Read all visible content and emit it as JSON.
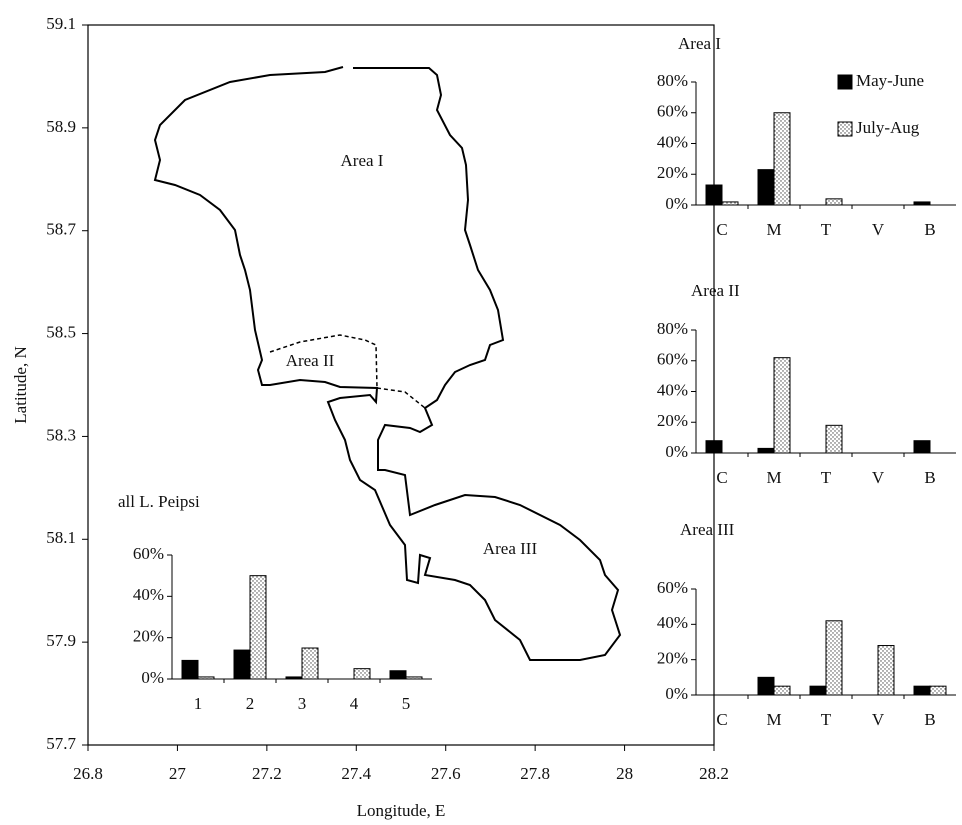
{
  "chart_data": [
    {
      "type": "map",
      "xlabel": "Longitude, E",
      "ylabel": "Latitude, N",
      "xlim": [
        26.8,
        28.2
      ],
      "ylim": [
        57.7,
        59.1
      ],
      "xticks": [
        26.8,
        27,
        27.2,
        27.4,
        27.6,
        27.8,
        28,
        28.2
      ],
      "yticks": [
        57.7,
        57.9,
        58.1,
        58.3,
        58.5,
        58.7,
        58.9,
        59.1
      ],
      "annotations": [
        "Area I",
        "Area II",
        "Area III"
      ]
    },
    {
      "type": "bar",
      "title": "all L. Peipsi",
      "categories": [
        "1",
        "2",
        "3",
        "4",
        "5"
      ],
      "series": [
        {
          "color": "#000000",
          "values": [
            9,
            14,
            1,
            0,
            4
          ]
        },
        {
          "color": "#ffffff",
          "pattern": "dotted",
          "values": [
            1,
            50,
            15,
            5,
            1
          ]
        }
      ],
      "ylim": [
        0,
        60
      ],
      "yticks": [
        {
          "value": 0,
          "label": "0%"
        },
        {
          "value": 20,
          "label": "20%"
        },
        {
          "value": 40,
          "label": "40%"
        },
        {
          "value": 60,
          "label": "60%"
        }
      ]
    },
    {
      "type": "bar",
      "title": "Area I",
      "categories": [
        "C",
        "M",
        "T",
        "V",
        "B"
      ],
      "legend": "top-right",
      "series": [
        {
          "name": "May-June",
          "color": "#000000",
          "values": [
            13,
            23,
            0,
            0,
            2
          ]
        },
        {
          "name": "July-Aug",
          "color": "#ffffff",
          "pattern": "dotted",
          "values": [
            2,
            60,
            4,
            0,
            0
          ]
        }
      ],
      "ylim": [
        0,
        80
      ],
      "yticks": [
        {
          "value": 0,
          "label": "0%"
        },
        {
          "value": 20,
          "label": "20%"
        },
        {
          "value": 40,
          "label": "40%"
        },
        {
          "value": 60,
          "label": "60%"
        },
        {
          "value": 80,
          "label": "80%"
        }
      ]
    },
    {
      "type": "bar",
      "title": "Area II",
      "categories": [
        "C",
        "M",
        "T",
        "V",
        "B"
      ],
      "series": [
        {
          "color": "#000000",
          "values": [
            8,
            3,
            0,
            0,
            8
          ]
        },
        {
          "color": "#ffffff",
          "pattern": "dotted",
          "values": [
            0,
            62,
            18,
            0,
            0
          ]
        }
      ],
      "ylim": [
        0,
        80
      ],
      "yticks": [
        {
          "value": 0,
          "label": "0%"
        },
        {
          "value": 20,
          "label": "20%"
        },
        {
          "value": 40,
          "label": "40%"
        },
        {
          "value": 60,
          "label": "60%"
        },
        {
          "value": 80,
          "label": "80%"
        }
      ]
    },
    {
      "type": "bar",
      "title": "Area III",
      "categories": [
        "C",
        "M",
        "T",
        "V",
        "B"
      ],
      "series": [
        {
          "color": "#000000",
          "values": [
            0,
            10,
            5,
            0,
            5
          ]
        },
        {
          "color": "#ffffff",
          "pattern": "dotted",
          "values": [
            0,
            5,
            42,
            28,
            5
          ]
        }
      ],
      "ylim": [
        0,
        60
      ],
      "yticks": [
        {
          "value": 0,
          "label": "0%"
        },
        {
          "value": 20,
          "label": "20%"
        },
        {
          "value": 40,
          "label": "40%"
        },
        {
          "value": 60,
          "label": "60%"
        }
      ]
    }
  ]
}
